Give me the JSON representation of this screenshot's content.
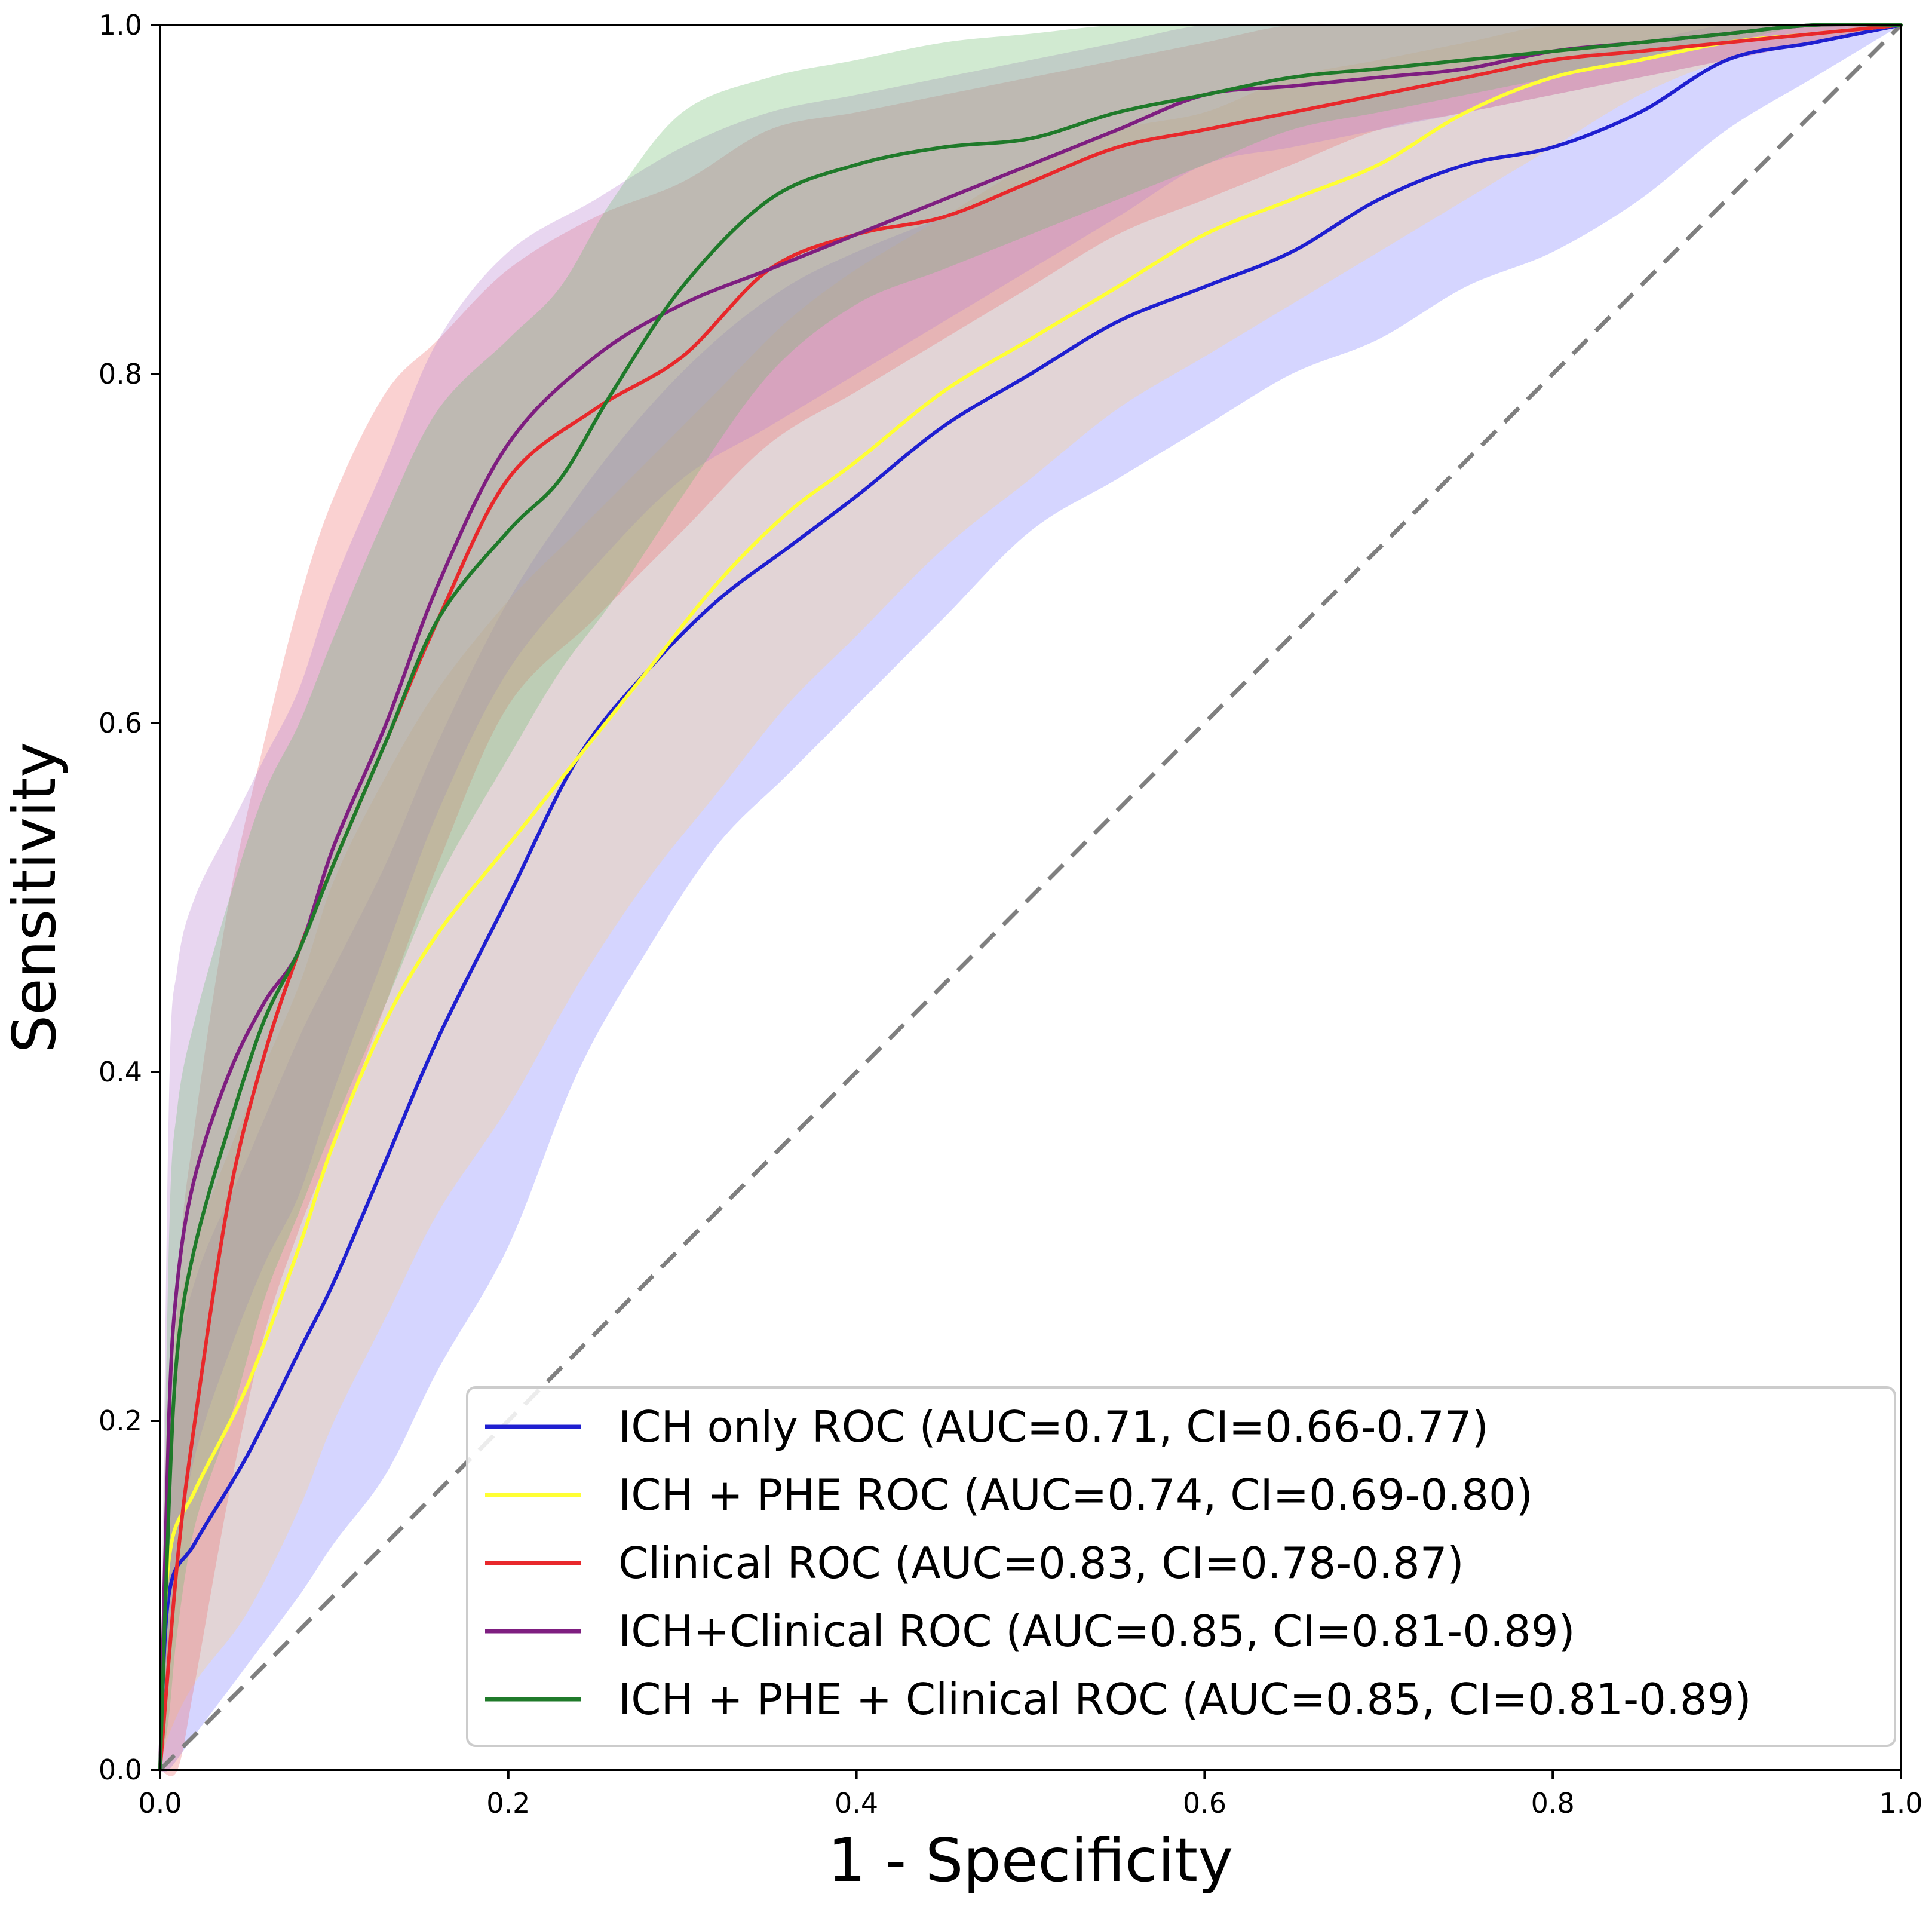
{
  "chart_data": {
    "type": "line",
    "title": "",
    "xlabel": "1 - Specificity",
    "ylabel": "Sensitivity",
    "xlim": [
      0.0,
      1.0
    ],
    "ylim": [
      0.0,
      1.0
    ],
    "xticks": [
      "0.0",
      "0.2",
      "0.4",
      "0.6",
      "0.8",
      "1.0"
    ],
    "yticks": [
      "0.0",
      "0.2",
      "0.4",
      "0.6",
      "0.8",
      "1.0"
    ],
    "grid": false,
    "legend_position": "lower-right",
    "reference_line": {
      "style": "dashed",
      "color": "#808080",
      "x": [
        0,
        1
      ],
      "y": [
        0,
        1
      ]
    },
    "series": [
      {
        "name": "ICH only ROC (AUC=0.71, CI=0.66-0.77)",
        "color": "#1f1fd0",
        "fill": "#7b7bff",
        "x": [
          0,
          0.005,
          0.02,
          0.05,
          0.08,
          0.1,
          0.13,
          0.16,
          0.2,
          0.24,
          0.28,
          0.32,
          0.36,
          0.4,
          0.45,
          0.5,
          0.55,
          0.6,
          0.65,
          0.7,
          0.75,
          0.8,
          0.85,
          0.9,
          0.95,
          1.0
        ],
        "y": [
          0,
          0.1,
          0.13,
          0.18,
          0.24,
          0.28,
          0.35,
          0.42,
          0.5,
          0.58,
          0.63,
          0.67,
          0.7,
          0.73,
          0.77,
          0.8,
          0.83,
          0.85,
          0.87,
          0.9,
          0.92,
          0.93,
          0.95,
          0.98,
          0.99,
          1.0
        ],
        "lower": [
          0,
          0.0,
          0.02,
          0.06,
          0.1,
          0.13,
          0.17,
          0.23,
          0.3,
          0.4,
          0.47,
          0.53,
          0.57,
          0.61,
          0.66,
          0.71,
          0.74,
          0.77,
          0.8,
          0.82,
          0.85,
          0.87,
          0.9,
          0.94,
          0.97,
          1.0
        ],
        "upper": [
          0,
          0.2,
          0.28,
          0.35,
          0.42,
          0.46,
          0.52,
          0.59,
          0.67,
          0.73,
          0.78,
          0.82,
          0.85,
          0.87,
          0.89,
          0.91,
          0.93,
          0.94,
          0.95,
          0.96,
          0.97,
          0.98,
          0.99,
          1.0,
          1.0,
          1.0
        ]
      },
      {
        "name": "ICH + PHE ROC (AUC=0.74, CI=0.69-0.80)",
        "color": "#ffff33",
        "fill": "#ffd280",
        "x": [
          0,
          0.005,
          0.02,
          0.05,
          0.08,
          0.1,
          0.13,
          0.16,
          0.2,
          0.24,
          0.28,
          0.32,
          0.36,
          0.4,
          0.45,
          0.5,
          0.55,
          0.6,
          0.65,
          0.7,
          0.75,
          0.8,
          0.85,
          0.9,
          0.95,
          1.0
        ],
        "y": [
          0,
          0.12,
          0.16,
          0.22,
          0.3,
          0.36,
          0.43,
          0.48,
          0.53,
          0.58,
          0.63,
          0.68,
          0.72,
          0.75,
          0.79,
          0.82,
          0.85,
          0.88,
          0.9,
          0.92,
          0.95,
          0.97,
          0.98,
          0.99,
          0.995,
          1.0
        ],
        "lower": [
          0,
          0.02,
          0.05,
          0.09,
          0.15,
          0.2,
          0.26,
          0.32,
          0.38,
          0.45,
          0.51,
          0.56,
          0.61,
          0.65,
          0.7,
          0.74,
          0.78,
          0.81,
          0.84,
          0.87,
          0.9,
          0.93,
          0.96,
          0.98,
          0.99,
          1.0
        ],
        "upper": [
          0,
          0.22,
          0.3,
          0.38,
          0.45,
          0.51,
          0.57,
          0.62,
          0.67,
          0.71,
          0.75,
          0.79,
          0.83,
          0.86,
          0.89,
          0.92,
          0.94,
          0.95,
          0.97,
          0.98,
          0.99,
          1.0,
          1.0,
          1.0,
          1.0,
          1.0
        ]
      },
      {
        "name": "Clinical ROC (AUC=0.83, CI=0.78-0.87)",
        "color": "#e8282b",
        "fill": "#f07070",
        "x": [
          0,
          0.01,
          0.02,
          0.04,
          0.06,
          0.08,
          0.1,
          0.13,
          0.16,
          0.2,
          0.25,
          0.3,
          0.35,
          0.4,
          0.45,
          0.5,
          0.55,
          0.6,
          0.65,
          0.7,
          0.75,
          0.8,
          0.85,
          0.9,
          0.95,
          1.0
        ],
        "y": [
          0,
          0.12,
          0.2,
          0.33,
          0.41,
          0.47,
          0.52,
          0.59,
          0.66,
          0.74,
          0.78,
          0.81,
          0.86,
          0.88,
          0.89,
          0.91,
          0.93,
          0.94,
          0.95,
          0.96,
          0.97,
          0.98,
          0.985,
          0.99,
          0.995,
          1.0
        ],
        "lower": [
          0,
          0.0,
          0.05,
          0.16,
          0.25,
          0.31,
          0.36,
          0.44,
          0.52,
          0.61,
          0.66,
          0.71,
          0.76,
          0.79,
          0.82,
          0.85,
          0.88,
          0.9,
          0.92,
          0.94,
          0.95,
          0.96,
          0.97,
          0.98,
          0.99,
          1.0
        ],
        "upper": [
          0,
          0.27,
          0.37,
          0.5,
          0.59,
          0.67,
          0.73,
          0.79,
          0.82,
          0.86,
          0.89,
          0.91,
          0.94,
          0.95,
          0.96,
          0.97,
          0.98,
          0.99,
          1.0,
          1.0,
          1.0,
          1.0,
          1.0,
          1.0,
          1.0,
          1.0
        ]
      },
      {
        "name": "ICH+Clinical ROC (AUC=0.85, CI=0.81-0.89)",
        "color": "#7e1e80",
        "fill": "#b77fcf",
        "x": [
          0,
          0.005,
          0.01,
          0.02,
          0.04,
          0.06,
          0.08,
          0.1,
          0.13,
          0.16,
          0.2,
          0.25,
          0.3,
          0.35,
          0.4,
          0.45,
          0.5,
          0.55,
          0.6,
          0.65,
          0.7,
          0.75,
          0.8,
          0.85,
          0.9,
          0.95,
          1.0
        ],
        "y": [
          0,
          0.2,
          0.28,
          0.34,
          0.4,
          0.44,
          0.47,
          0.53,
          0.6,
          0.68,
          0.76,
          0.81,
          0.84,
          0.86,
          0.88,
          0.9,
          0.92,
          0.94,
          0.96,
          0.965,
          0.97,
          0.975,
          0.985,
          0.99,
          0.995,
          1.0,
          1.0
        ],
        "lower": [
          0,
          0.05,
          0.12,
          0.18,
          0.24,
          0.29,
          0.33,
          0.39,
          0.47,
          0.55,
          0.63,
          0.69,
          0.74,
          0.77,
          0.8,
          0.83,
          0.86,
          0.89,
          0.92,
          0.93,
          0.94,
          0.95,
          0.96,
          0.97,
          0.98,
          0.99,
          1.0
        ],
        "upper": [
          0,
          0.38,
          0.46,
          0.5,
          0.54,
          0.58,
          0.62,
          0.68,
          0.75,
          0.82,
          0.87,
          0.9,
          0.93,
          0.95,
          0.96,
          0.97,
          0.98,
          0.99,
          1.0,
          1.0,
          1.0,
          1.0,
          1.0,
          1.0,
          1.0,
          1.0,
          1.0
        ]
      },
      {
        "name": "ICH + PHE + Clinical ROC (AUC=0.85, CI=0.81-0.89)",
        "color": "#1f7a2a",
        "fill": "#6fbf6f",
        "x": [
          0,
          0.005,
          0.01,
          0.02,
          0.04,
          0.06,
          0.08,
          0.1,
          0.13,
          0.16,
          0.2,
          0.23,
          0.26,
          0.3,
          0.35,
          0.4,
          0.45,
          0.5,
          0.55,
          0.6,
          0.65,
          0.7,
          0.75,
          0.8,
          0.85,
          0.9,
          0.95,
          1.0
        ],
        "y": [
          0,
          0.15,
          0.24,
          0.3,
          0.37,
          0.43,
          0.47,
          0.52,
          0.59,
          0.66,
          0.71,
          0.74,
          0.79,
          0.85,
          0.9,
          0.92,
          0.93,
          0.935,
          0.95,
          0.96,
          0.97,
          0.975,
          0.98,
          0.985,
          0.99,
          0.995,
          1.0,
          1.0
        ],
        "lower": [
          0,
          0.03,
          0.08,
          0.14,
          0.2,
          0.27,
          0.32,
          0.37,
          0.44,
          0.51,
          0.58,
          0.63,
          0.67,
          0.73,
          0.8,
          0.84,
          0.86,
          0.88,
          0.9,
          0.92,
          0.94,
          0.95,
          0.96,
          0.97,
          0.98,
          0.99,
          1.0,
          1.0
        ],
        "upper": [
          0,
          0.3,
          0.38,
          0.43,
          0.5,
          0.56,
          0.6,
          0.65,
          0.72,
          0.78,
          0.82,
          0.85,
          0.9,
          0.95,
          0.97,
          0.98,
          0.99,
          0.995,
          1.0,
          1.0,
          1.0,
          1.0,
          1.0,
          1.0,
          1.0,
          1.0,
          1.0,
          1.0
        ]
      }
    ]
  }
}
